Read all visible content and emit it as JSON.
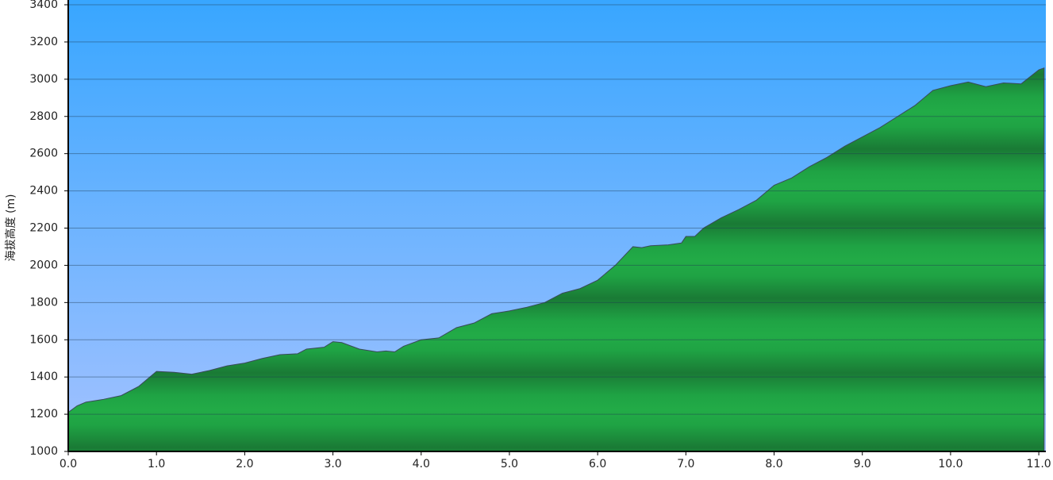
{
  "chart_data": {
    "type": "area",
    "y_label": "海拔高度 (m)",
    "x": [
      0,
      0.1,
      0.2,
      0.4,
      0.6,
      0.8,
      0.9,
      1.0,
      1.2,
      1.4,
      1.6,
      1.8,
      2.0,
      2.2,
      2.4,
      2.6,
      2.7,
      2.9,
      3.0,
      3.1,
      3.3,
      3.5,
      3.6,
      3.7,
      3.8,
      4.0,
      4.2,
      4.4,
      4.6,
      4.8,
      5.0,
      5.2,
      5.4,
      5.6,
      5.8,
      6.0,
      6.2,
      6.4,
      6.5,
      6.6,
      6.8,
      6.95,
      7.0,
      7.1,
      7.2,
      7.4,
      7.6,
      7.8,
      8.0,
      8.2,
      8.4,
      8.6,
      8.8,
      9.0,
      9.2,
      9.4,
      9.6,
      9.8,
      10.0,
      10.2,
      10.4,
      10.6,
      10.8,
      11.0,
      11.06
    ],
    "values": [
      1210,
      1245,
      1265,
      1280,
      1300,
      1350,
      1390,
      1430,
      1425,
      1415,
      1435,
      1460,
      1475,
      1500,
      1520,
      1525,
      1550,
      1560,
      1590,
      1585,
      1550,
      1535,
      1540,
      1535,
      1565,
      1600,
      1610,
      1665,
      1690,
      1740,
      1755,
      1775,
      1800,
      1850,
      1875,
      1920,
      2000,
      2100,
      2095,
      2105,
      2110,
      2120,
      2155,
      2155,
      2200,
      2255,
      2300,
      2350,
      2430,
      2470,
      2530,
      2580,
      2640,
      2690,
      2740,
      2800,
      2860,
      2940,
      2965,
      2985,
      2960,
      2980,
      2975,
      3050,
      3060
    ],
    "color": "#22a544",
    "xlim": [
      0,
      11.08
    ],
    "xticks": [
      {
        "value": 0,
        "label": "0.0"
      },
      {
        "value": 1,
        "label": "1.0"
      },
      {
        "value": 2,
        "label": "2.0"
      },
      {
        "value": 3,
        "label": "3.0"
      },
      {
        "value": 4,
        "label": "4.0"
      },
      {
        "value": 5,
        "label": "5.0"
      },
      {
        "value": 6,
        "label": "6.0"
      },
      {
        "value": 7,
        "label": "7.0"
      },
      {
        "value": 8,
        "label": "8.0"
      },
      {
        "value": 9,
        "label": "9.0"
      },
      {
        "value": 10,
        "label": "10.0"
      },
      {
        "value": 11,
        "label": "11.0"
      }
    ],
    "ylim": [
      1000,
      3400
    ],
    "yticks": [
      1000,
      1200,
      1400,
      1600,
      1800,
      2000,
      2200,
      2400,
      2600,
      2800,
      3000,
      3200,
      3400
    ],
    "grid": true
  }
}
